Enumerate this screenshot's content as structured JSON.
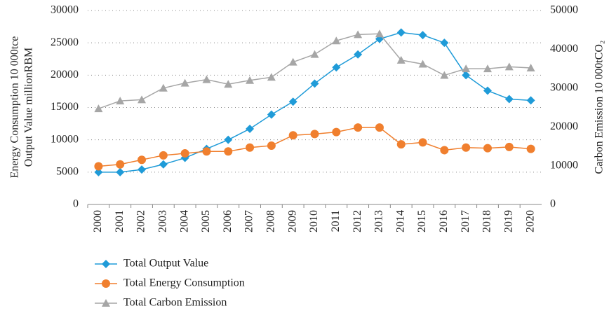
{
  "chart_data": {
    "type": "line",
    "ylabel": [
      "Energy Consumption 10 000tce",
      "Output Value millionRBM"
    ],
    "y2label": "Carbon Emission 10 000tCO₂",
    "categories": [
      "2000",
      "2001",
      "2002",
      "2003",
      "2004",
      "2005",
      "2006",
      "2007",
      "2008",
      "2009",
      "2010",
      "2011",
      "2012",
      "2013",
      "2014",
      "2015",
      "2016",
      "2017",
      "2018",
      "2019",
      "2020"
    ],
    "ylim": [
      0,
      30000
    ],
    "yticks": [
      0,
      5000,
      10000,
      15000,
      20000,
      25000,
      30000
    ],
    "y2lim": [
      0,
      50000
    ],
    "y2ticks": [
      0,
      10000,
      20000,
      30000,
      40000,
      50000
    ],
    "grid": true,
    "series": [
      {
        "name": "Total Output Value",
        "color": "#1f9bd8",
        "marker": "diamond",
        "values": [
          5000,
          5000,
          5400,
          6200,
          7200,
          8600,
          10000,
          11700,
          13900,
          15900,
          18700,
          21200,
          23200,
          25600,
          26600,
          26200,
          25000,
          20000,
          17600,
          16300,
          16100
        ]
      },
      {
        "name": "Total Energy Consumption",
        "color": "#f07f2e",
        "marker": "circle",
        "values": [
          5900,
          6200,
          6900,
          7600,
          7900,
          8200,
          8200,
          8800,
          9100,
          10700,
          10900,
          11200,
          11900,
          11900,
          9300,
          9600,
          8400,
          8800,
          8700,
          8900,
          8600
        ]
      },
      {
        "name": "Total Carbon Emission",
        "color": "#a6a6a6",
        "marker": "triangle",
        "axis": "y2",
        "values": [
          24700,
          26700,
          27000,
          30000,
          31300,
          32200,
          31000,
          32000,
          32800,
          36700,
          38700,
          42200,
          43800,
          44000,
          37200,
          36200,
          33300,
          35000,
          35000,
          35500,
          35200
        ]
      }
    ]
  }
}
